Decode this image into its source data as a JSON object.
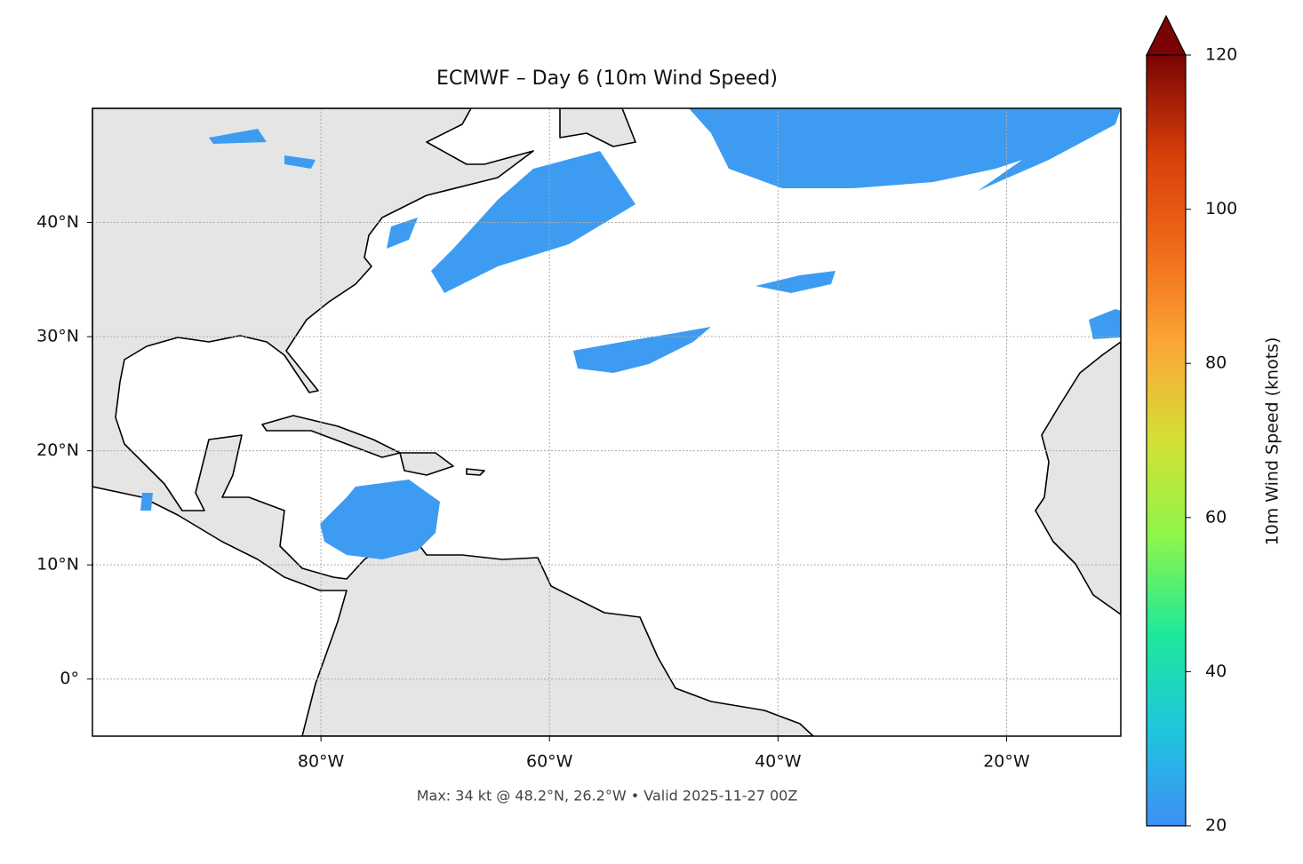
{
  "chart_data": {
    "type": "map",
    "title": "ECMWF – Day 6 (10m Wind Speed)",
    "note": "Max: 34 kt @ 48.2°N, 26.2°W • Valid 2025-11-27 00Z",
    "xlim": [
      -100,
      -10
    ],
    "ylim": [
      -5,
      50
    ],
    "xticks": [
      {
        "value": -80,
        "label": "80°W"
      },
      {
        "value": -60,
        "label": "60°W"
      },
      {
        "value": -40,
        "label": "40°W"
      },
      {
        "value": -20,
        "label": "20°W"
      }
    ],
    "yticks": [
      {
        "value": 0,
        "label": "0°"
      },
      {
        "value": 10,
        "label": "10°N"
      },
      {
        "value": 20,
        "label": "20°N"
      },
      {
        "value": 30,
        "label": "30°N"
      },
      {
        "value": 40,
        "label": "40°N"
      }
    ],
    "grid": true,
    "colorbar": {
      "label": "10m Wind Speed (knots)",
      "lim": [
        20,
        120
      ],
      "ticks": [
        20,
        40,
        60,
        80,
        100,
        120
      ],
      "extend": "max",
      "colors": [
        "#3f8ef5",
        "#1fc6de",
        "#1ee99a",
        "#8ef54a",
        "#d4e036",
        "#fca636",
        "#f06a1a",
        "#d43d0a",
        "#7a0403"
      ]
    }
  }
}
